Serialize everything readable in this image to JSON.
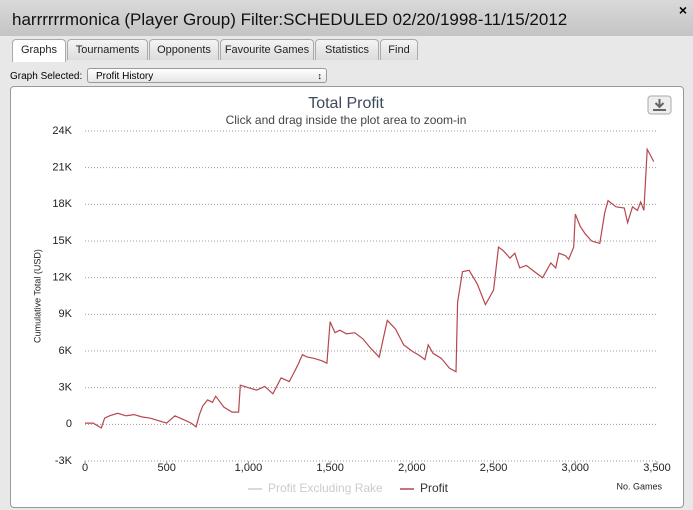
{
  "window": {
    "title": "harrrrrrmonica (Player Group) Filter:SCHEDULED 02/20/1998-11/15/2012",
    "close": "×",
    "tabs": [
      "Graphs",
      "Tournaments",
      "Opponents",
      "Favourite Games",
      "Statistics",
      "Find"
    ],
    "graph_selected_label": "Graph Selected:",
    "graph_selected_value": "Profit History"
  },
  "chart_data": {
    "type": "line",
    "title": "Total Profit",
    "subtitle": "Click and drag inside the plot area to zoom-in",
    "y_label": "Cumulative Total (USD)",
    "x_label": "No. Games",
    "x": [
      0,
      50,
      100,
      120,
      150,
      200,
      250,
      300,
      350,
      400,
      450,
      500,
      550,
      600,
      650,
      680,
      700,
      720,
      750,
      780,
      800,
      850,
      900,
      940,
      950,
      1000,
      1050,
      1100,
      1150,
      1200,
      1250,
      1300,
      1330,
      1360,
      1400,
      1450,
      1480,
      1500,
      1530,
      1560,
      1600,
      1650,
      1700,
      1750,
      1800,
      1850,
      1900,
      1950,
      2000,
      2050,
      2080,
      2100,
      2130,
      2180,
      2230,
      2270,
      2280,
      2310,
      2350,
      2400,
      2450,
      2480,
      2500,
      2530,
      2560,
      2600,
      2630,
      2660,
      2700,
      2750,
      2800,
      2850,
      2880,
      2900,
      2940,
      2960,
      2990,
      3000,
      3030,
      3060,
      3100,
      3150,
      3180,
      3200,
      3250,
      3300,
      3320,
      3350,
      3380,
      3400,
      3420,
      3440,
      3460,
      3480
    ],
    "series": [
      {
        "name": "Profit Excluding Rake",
        "color": "#cccccc",
        "visible": false,
        "values": [
          null,
          null,
          null,
          null,
          null,
          null,
          null,
          null,
          null,
          null,
          null,
          null,
          null,
          null,
          null,
          null,
          null,
          null,
          null,
          null,
          null,
          null,
          null,
          null,
          null,
          null,
          null,
          null,
          null,
          null,
          null,
          null,
          null,
          null,
          null,
          null,
          null,
          null,
          null,
          null,
          null,
          null,
          null,
          null,
          null,
          null,
          null,
          null,
          null,
          null,
          null,
          null,
          null,
          null,
          null,
          null,
          null,
          null,
          null,
          null,
          null,
          null,
          null,
          null,
          null,
          null,
          null,
          null,
          null,
          null,
          null,
          null,
          null,
          null,
          null,
          null,
          null,
          null,
          null,
          null,
          null,
          null,
          null,
          null,
          null,
          null,
          null,
          null,
          null,
          null,
          null,
          null,
          null,
          null
        ]
      },
      {
        "name": "Profit",
        "color": "#b5474d",
        "visible": true,
        "values": [
          100,
          100,
          -300,
          500,
          700,
          900,
          700,
          800,
          600,
          500,
          300,
          100,
          700,
          400,
          100,
          -200,
          800,
          1500,
          2000,
          1800,
          2300,
          1400,
          1000,
          1000,
          3200,
          3000,
          2800,
          3100,
          2500,
          3800,
          3500,
          4800,
          5700,
          5500,
          5400,
          5200,
          5000,
          8400,
          7500,
          7700,
          7400,
          7500,
          7000,
          6200,
          5500,
          8500,
          7800,
          6500,
          6000,
          5600,
          5300,
          6500,
          5800,
          5400,
          4600,
          4300,
          10000,
          12500,
          12600,
          11500,
          9800,
          10500,
          11000,
          14500,
          14200,
          13600,
          14000,
          12800,
          13000,
          12500,
          12000,
          13200,
          12800,
          14000,
          13800,
          13500,
          14500,
          17200,
          16200,
          15600,
          15000,
          14800,
          17300,
          18300,
          17800,
          17700,
          16500,
          17800,
          17500,
          18200,
          17500,
          22500,
          22000,
          21500
        ]
      }
    ],
    "xlim": [
      0,
      3500
    ],
    "xticks": [
      0,
      500,
      {
        "value": 1000,
        "label": "1,000"
      },
      {
        "value": 1500,
        "label": "1,500"
      },
      {
        "value": 2000,
        "label": "2,000"
      },
      {
        "value": 2500,
        "label": "2,500"
      },
      {
        "value": 3000,
        "label": "3,000"
      },
      {
        "value": 3500,
        "label": "3,500"
      }
    ],
    "ylim": [
      -3000,
      24000
    ],
    "yticks": [
      {
        "value": -3000,
        "label": "-3K"
      },
      0,
      {
        "value": 3000,
        "label": "3K"
      },
      {
        "value": 6000,
        "label": "6K"
      },
      {
        "value": 9000,
        "label": "9K"
      },
      {
        "value": 12000,
        "label": "12K"
      },
      {
        "value": 15000,
        "label": "15K"
      },
      {
        "value": 18000,
        "label": "18K"
      },
      {
        "value": 21000,
        "label": "21K"
      },
      {
        "value": 24000,
        "label": "24K"
      }
    ],
    "grid": true
  }
}
